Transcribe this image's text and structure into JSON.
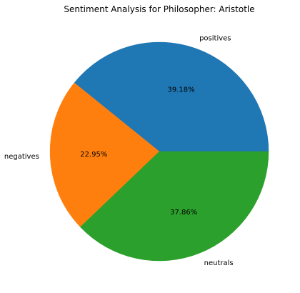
{
  "chart_data": {
    "type": "pie",
    "title": "Sentiment Analysis for  Philosopher: Aristotle",
    "labels": [
      "positives",
      "negatives",
      "neutrals"
    ],
    "values": [
      39.18,
      22.95,
      37.86
    ],
    "percent_labels": [
      "39.18%",
      "22.95%",
      "37.86%"
    ],
    "colors": [
      "#1f77b4",
      "#ff7f0e",
      "#2ca02c"
    ],
    "start_angle": 0,
    "direction": "counterclockwise"
  }
}
